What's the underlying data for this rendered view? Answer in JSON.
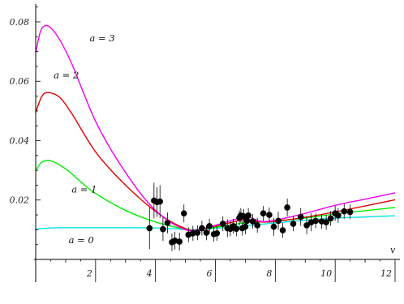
{
  "chart_data": {
    "type": "line",
    "title": "",
    "xlabel": "v",
    "ylabel": "",
    "xlim": [
      0,
      12
    ],
    "ylim": [
      0,
      0.086
    ],
    "x_ticks": [
      2,
      4,
      6,
      8,
      10,
      12
    ],
    "x_tick_labels": [
      "2",
      "4",
      "6",
      "8",
      "10",
      "12"
    ],
    "y_ticks": [
      0.02,
      0.04,
      0.06,
      0.08
    ],
    "y_tick_labels": [
      "0.02",
      "0.04",
      "0.06",
      "0.08"
    ],
    "grid": false,
    "legend": "none",
    "series": [
      {
        "name": "a = 0",
        "color": "#00e5e5",
        "x": [
          0,
          0.5,
          1,
          2,
          3,
          4,
          5,
          5.3,
          6,
          7,
          8,
          9,
          10,
          11,
          12
        ],
        "y": [
          0.0102,
          0.0106,
          0.0107,
          0.0107,
          0.0107,
          0.0106,
          0.0101,
          0.01,
          0.0105,
          0.0113,
          0.0123,
          0.0132,
          0.0139,
          0.0143,
          0.0147
        ]
      },
      {
        "name": "a = 1",
        "color": "#00ee00",
        "x": [
          0,
          0.2,
          0.5,
          1,
          1.5,
          2,
          3,
          4,
          5,
          5.3,
          6,
          7,
          8,
          9,
          10,
          11,
          12
        ],
        "y": [
          0.0298,
          0.0327,
          0.0332,
          0.0305,
          0.0262,
          0.0222,
          0.0165,
          0.0126,
          0.0101,
          0.0098,
          0.0108,
          0.0123,
          0.0129,
          0.0139,
          0.0153,
          0.0164,
          0.0175
        ]
      },
      {
        "name": "a = 2",
        "color": "#e00000",
        "x": [
          0,
          0.2,
          0.4,
          0.8,
          1.2,
          1.6,
          2,
          2.5,
          3,
          3.5,
          4,
          4.5,
          5,
          5.3,
          6,
          7,
          7.5,
          8,
          9,
          10,
          11,
          12
        ],
        "y": [
          0.0495,
          0.0548,
          0.0562,
          0.0546,
          0.0492,
          0.0425,
          0.0362,
          0.0302,
          0.025,
          0.0203,
          0.0162,
          0.0128,
          0.0104,
          0.0098,
          0.0112,
          0.0134,
          0.0126,
          0.0128,
          0.0142,
          0.016,
          0.018,
          0.0201
        ]
      },
      {
        "name": "a = 3",
        "color": "#ee00ee",
        "x": [
          0,
          0.15,
          0.3,
          0.5,
          0.8,
          1.2,
          1.6,
          2,
          2.5,
          3,
          3.5,
          4,
          4.5,
          5,
          5.3,
          6,
          7,
          7.5,
          8,
          9,
          10,
          11,
          12
        ],
        "y": [
          0.0695,
          0.0765,
          0.0787,
          0.078,
          0.074,
          0.066,
          0.056,
          0.0465,
          0.0372,
          0.0293,
          0.0222,
          0.0165,
          0.0125,
          0.01,
          0.0097,
          0.0115,
          0.0142,
          0.0128,
          0.0132,
          0.0155,
          0.0182,
          0.0203,
          0.0224
        ]
      }
    ],
    "data_points": {
      "color": "#000000",
      "x": [
        3.8,
        3.95,
        4.05,
        4.15,
        4.25,
        4.4,
        4.55,
        4.65,
        4.8,
        4.95,
        5.1,
        5.25,
        5.4,
        5.55,
        5.7,
        5.8,
        5.95,
        6.05,
        6.25,
        6.4,
        6.5,
        6.6,
        6.7,
        6.8,
        6.85,
        6.9,
        6.95,
        7.0,
        7.05,
        7.1,
        7.25,
        7.4,
        7.6,
        7.8,
        7.95,
        8.1,
        8.25,
        8.4,
        8.6,
        8.85,
        9.05,
        9.2,
        9.35,
        9.55,
        9.7,
        9.85,
        10.0,
        10.1,
        10.3,
        10.5
      ],
      "y": [
        0.0105,
        0.0198,
        0.0193,
        0.0195,
        0.0102,
        0.0123,
        0.0058,
        0.0063,
        0.006,
        0.0155,
        0.0083,
        0.0088,
        0.009,
        0.0105,
        0.009,
        0.0112,
        0.0085,
        0.0088,
        0.012,
        0.0105,
        0.0103,
        0.0112,
        0.0103,
        0.014,
        0.0148,
        0.0105,
        0.0145,
        0.011,
        0.013,
        0.0148,
        0.0128,
        0.0115,
        0.0155,
        0.015,
        0.011,
        0.013,
        0.0098,
        0.0175,
        0.012,
        0.0143,
        0.0115,
        0.0125,
        0.013,
        0.0128,
        0.0125,
        0.0138,
        0.0155,
        0.0148,
        0.0162,
        0.016
      ],
      "err": [
        0.007,
        0.006,
        0.005,
        0.0055,
        0.004,
        0.0035,
        0.003,
        0.003,
        0.003,
        0.003,
        0.0025,
        0.0025,
        0.0025,
        0.0025,
        0.0025,
        0.0025,
        0.0025,
        0.0025,
        0.0025,
        0.003,
        0.0025,
        0.0025,
        0.0025,
        0.0025,
        0.0025,
        0.0025,
        0.0025,
        0.0025,
        0.0025,
        0.0025,
        0.0025,
        0.0025,
        0.0025,
        0.0025,
        0.003,
        0.003,
        0.0025,
        0.003,
        0.0025,
        0.003,
        0.003,
        0.003,
        0.0025,
        0.0025,
        0.0025,
        0.0025,
        0.0025,
        0.0025,
        0.0025,
        0.0025
      ]
    },
    "annotations": [
      {
        "text": "a = 3",
        "x": 1.8,
        "y": 0.0735
      },
      {
        "text": "a = 2",
        "x": 0.6,
        "y": 0.061
      },
      {
        "text": "a = 1",
        "x": 1.2,
        "y": 0.0225
      },
      {
        "text": "a = 0",
        "x": 1.1,
        "y": 0.0055
      }
    ]
  }
}
